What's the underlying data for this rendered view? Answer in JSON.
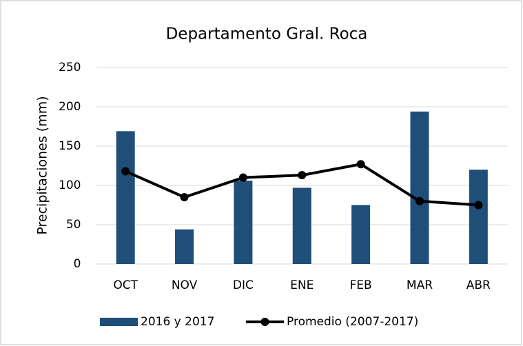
{
  "chart_data": {
    "type": "bar",
    "title": "Departamento Gral. Roca",
    "y_label": "Precipitaciones (mm)",
    "categories": [
      "OCT",
      "NOV",
      "DIC",
      "ENE",
      "FEB",
      "MAR",
      "ABR"
    ],
    "series": [
      {
        "name": "2016 y 2017",
        "type": "bar",
        "color": "#1f4e79",
        "values": [
          169,
          44,
          106,
          97,
          75,
          194,
          120
        ]
      },
      {
        "name": "Promedio (2007-2017)",
        "type": "line",
        "color": "#000000",
        "values": [
          118,
          85,
          110,
          113,
          127,
          80,
          75
        ]
      }
    ],
    "ylim": [
      0,
      250
    ],
    "yticks": [
      0,
      50,
      100,
      150,
      200,
      250
    ],
    "grid": true,
    "legend": "bottom"
  }
}
